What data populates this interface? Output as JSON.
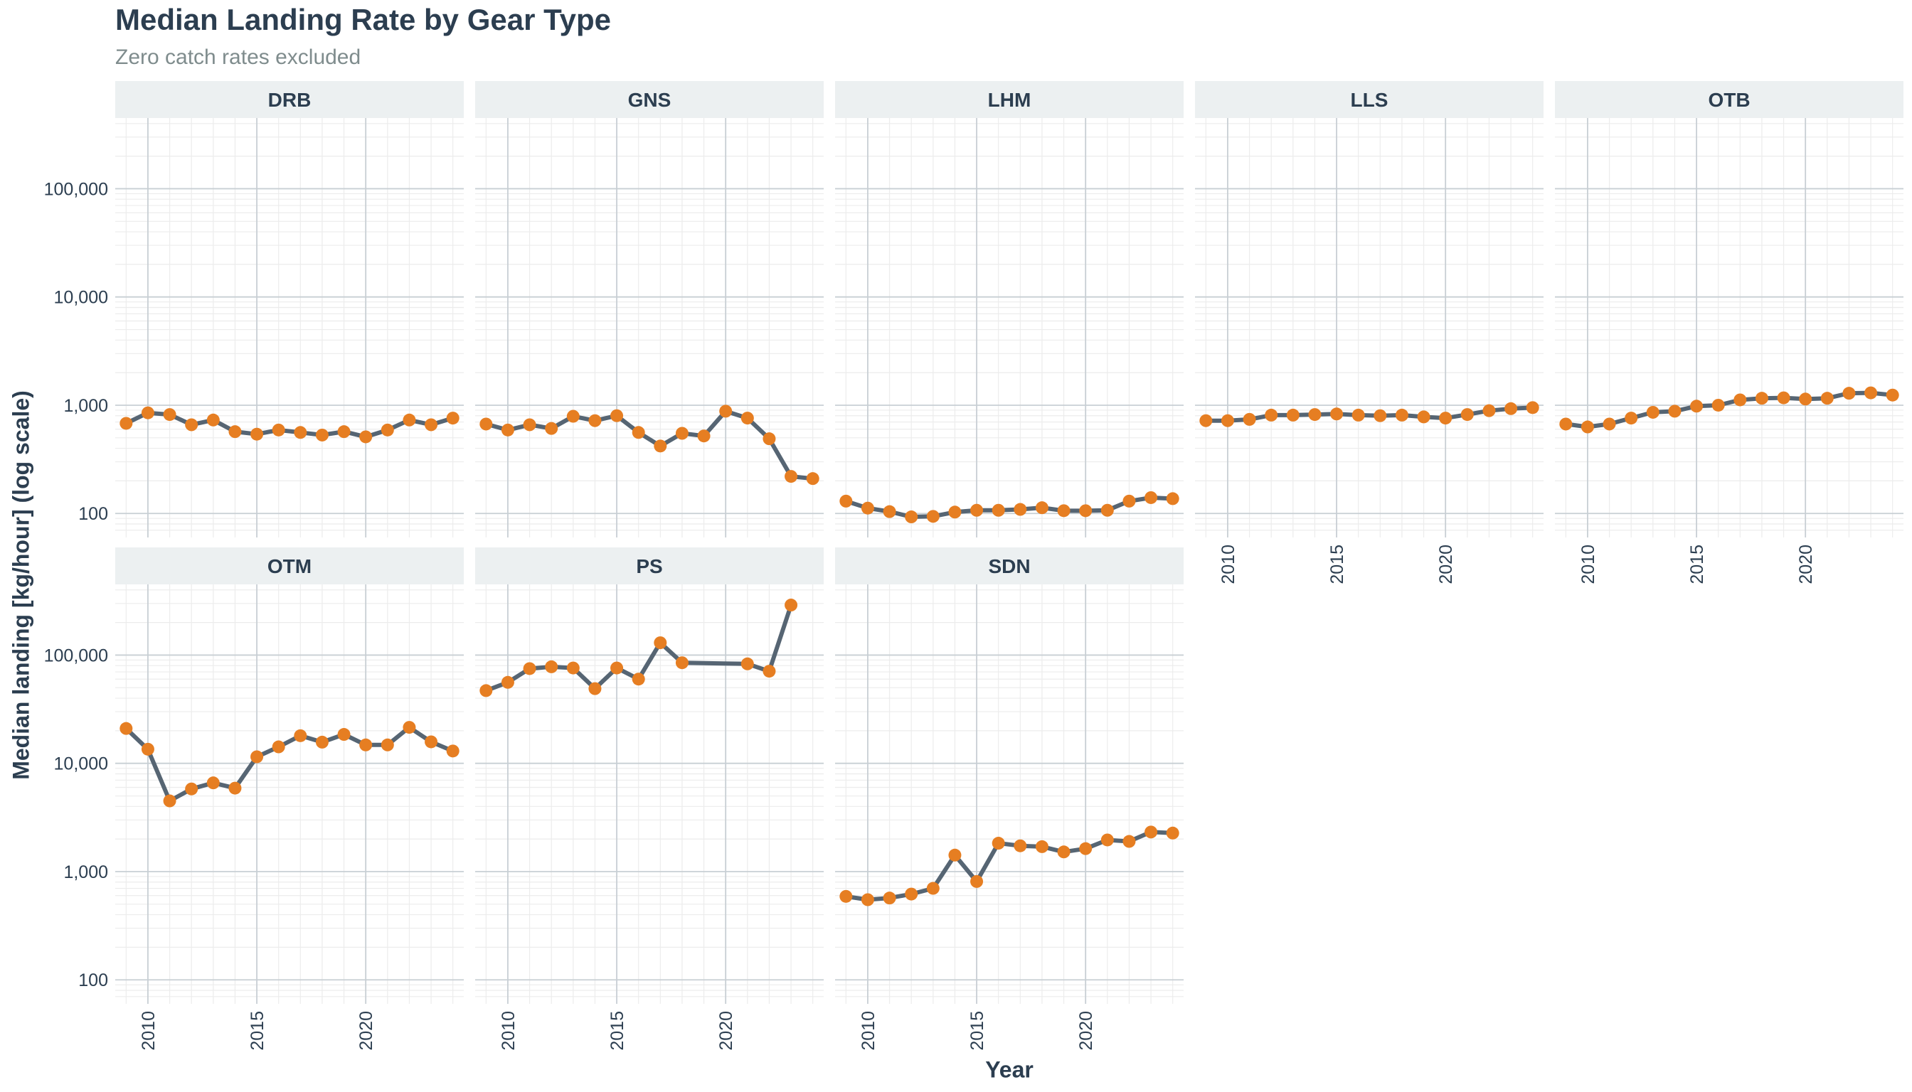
{
  "chart_data": {
    "type": "line",
    "title": "Median Landing Rate by Gear Type",
    "subtitle": "Zero catch rates excluded",
    "xlabel": "Year",
    "ylabel": "Median landing [kg/hour] (log scale)",
    "y_scale": "log",
    "ylim": [
      60,
      450000
    ],
    "xlim": [
      2008.5,
      2024.5
    ],
    "x_ticks": [
      2010,
      2015,
      2020
    ],
    "y_ticks": [
      100,
      1000,
      10000,
      100000
    ],
    "y_tick_labels": [
      "100",
      "1,000",
      "10,000",
      "100,000"
    ],
    "grid": true,
    "colors": {
      "line": "#566573",
      "point": "#e67e22",
      "strip": "#ecf0f1",
      "grid_major": "#c8cfd4",
      "text": "#2c3e50"
    },
    "panels": [
      {
        "name": "DRB",
        "x": [
          2009,
          2010,
          2011,
          2012,
          2013,
          2014,
          2015,
          2016,
          2017,
          2018,
          2019,
          2020,
          2021,
          2022,
          2023,
          2024
        ],
        "y": [
          680,
          850,
          820,
          660,
          730,
          570,
          540,
          590,
          560,
          530,
          570,
          510,
          590,
          730,
          660,
          760
        ]
      },
      {
        "name": "GNS",
        "x": [
          2009,
          2010,
          2011,
          2012,
          2013,
          2014,
          2015,
          2016,
          2017,
          2018,
          2019,
          2020,
          2021,
          2022,
          2023,
          2024
        ],
        "y": [
          670,
          590,
          660,
          610,
          790,
          720,
          800,
          560,
          420,
          550,
          520,
          880,
          760,
          490,
          220,
          210
        ]
      },
      {
        "name": "LHM",
        "x": [
          2009,
          2010,
          2011,
          2012,
          2013,
          2014,
          2015,
          2016,
          2017,
          2018,
          2019,
          2020,
          2021,
          2022,
          2023,
          2024
        ],
        "y": [
          130,
          112,
          104,
          93,
          94,
          103,
          107,
          107,
          109,
          113,
          106,
          106,
          107,
          130,
          140,
          137
        ]
      },
      {
        "name": "LLS",
        "x": [
          2009,
          2010,
          2011,
          2012,
          2013,
          2014,
          2015,
          2016,
          2017,
          2018,
          2019,
          2020,
          2021,
          2022,
          2023,
          2024
        ],
        "y": [
          720,
          720,
          740,
          810,
          810,
          820,
          830,
          810,
          800,
          810,
          780,
          760,
          820,
          890,
          930,
          950
        ]
      },
      {
        "name": "OTB",
        "x": [
          2009,
          2010,
          2011,
          2012,
          2013,
          2014,
          2015,
          2016,
          2017,
          2018,
          2019,
          2020,
          2021,
          2022,
          2023,
          2024
        ],
        "y": [
          670,
          630,
          670,
          760,
          860,
          880,
          980,
          1000,
          1120,
          1160,
          1170,
          1140,
          1160,
          1290,
          1300,
          1240
        ]
      },
      {
        "name": "OTM",
        "x": [
          2009,
          2010,
          2011,
          2012,
          2013,
          2014,
          2015,
          2016,
          2017,
          2018,
          2019,
          2020,
          2021,
          2022,
          2023,
          2024
        ],
        "y": [
          21000,
          13500,
          4500,
          5800,
          6600,
          5900,
          11500,
          14200,
          18000,
          15700,
          18500,
          14800,
          14800,
          21500,
          15800,
          13000
        ]
      },
      {
        "name": "PS",
        "x": [
          2009,
          2010,
          2011,
          2012,
          2013,
          2014,
          2015,
          2016,
          2017,
          2018,
          2021,
          2022,
          2023
        ],
        "y": [
          47000,
          56000,
          75000,
          78000,
          76000,
          49000,
          76000,
          60000,
          130000,
          85000,
          83000,
          71000,
          290000
        ]
      },
      {
        "name": "SDN",
        "x": [
          2009,
          2010,
          2011,
          2012,
          2013,
          2014,
          2015,
          2016,
          2017,
          2018,
          2019,
          2020,
          2021,
          2022,
          2023,
          2024
        ],
        "y": [
          590,
          550,
          570,
          620,
          700,
          1420,
          810,
          1830,
          1730,
          1700,
          1520,
          1630,
          1960,
          1900,
          2320,
          2270
        ]
      }
    ]
  }
}
